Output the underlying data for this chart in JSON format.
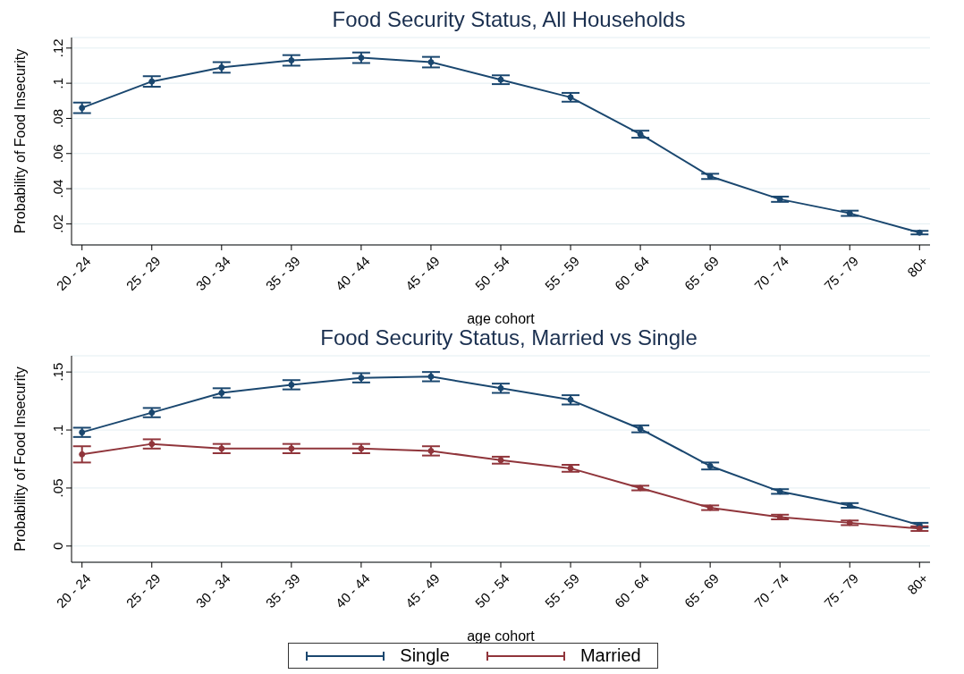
{
  "chart_data": [
    {
      "type": "line",
      "title": "Food Security Status, All Households",
      "xlabel": "age cohort",
      "ylabel": "Probability of Food Insecurity",
      "categories": [
        "20 - 24",
        "25 - 29",
        "30 - 34",
        "35 - 39",
        "40 - 44",
        "45 - 49",
        "50 - 54",
        "55 - 59",
        "60 - 64",
        "65 - 69",
        "70 - 74",
        "75 - 79",
        "80+"
      ],
      "series": [
        {
          "color": "#1a476f",
          "values": [
            0.086,
            0.101,
            0.109,
            0.113,
            0.1145,
            0.112,
            0.102,
            0.092,
            0.071,
            0.047,
            0.034,
            0.026,
            0.015
          ],
          "errors": [
            0.003,
            0.003,
            0.003,
            0.003,
            0.003,
            0.003,
            0.0025,
            0.0025,
            0.002,
            0.0015,
            0.0015,
            0.0015,
            0.001
          ]
        }
      ],
      "ylim": [
        0.008,
        0.126
      ],
      "yticks": [
        {
          "value": 0.02,
          "label": ".02"
        },
        {
          "value": 0.04,
          "label": ".04"
        },
        {
          "value": 0.06,
          "label": ".06"
        },
        {
          "value": 0.08,
          "label": ".08"
        },
        {
          "value": 0.1,
          "label": ".1"
        },
        {
          "value": 0.12,
          "label": ".12"
        }
      ],
      "grid": "y",
      "marker": "circle",
      "line_style": "solid"
    },
    {
      "type": "line",
      "title": "Food Security Status, Married vs Single",
      "xlabel": "age cohort",
      "ylabel": "Probability of Food Insecurity",
      "categories": [
        "20 - 24",
        "25 - 29",
        "30 - 34",
        "35 - 39",
        "40 - 44",
        "45 - 49",
        "50 - 54",
        "55 - 59",
        "60 - 64",
        "65 - 69",
        "70 - 74",
        "75 - 79",
        "80+"
      ],
      "series": [
        {
          "name": "Single",
          "color": "#1a476f",
          "values": [
            0.098,
            0.115,
            0.132,
            0.139,
            0.145,
            0.146,
            0.136,
            0.126,
            0.101,
            0.069,
            0.047,
            0.035,
            0.018
          ],
          "errors": [
            0.004,
            0.004,
            0.004,
            0.004,
            0.004,
            0.004,
            0.004,
            0.004,
            0.003,
            0.003,
            0.002,
            0.002,
            0.002
          ]
        },
        {
          "name": "Married",
          "color": "#90353b",
          "values": [
            0.079,
            0.088,
            0.084,
            0.084,
            0.084,
            0.082,
            0.074,
            0.067,
            0.05,
            0.033,
            0.025,
            0.02,
            0.015
          ],
          "errors": [
            0.007,
            0.004,
            0.004,
            0.004,
            0.004,
            0.004,
            0.003,
            0.003,
            0.002,
            0.002,
            0.002,
            0.002,
            0.002
          ]
        }
      ],
      "ylim": [
        -0.014,
        0.164
      ],
      "yticks": [
        0,
        {
          "value": 0.05,
          "label": ".05"
        },
        {
          "value": 0.1,
          "label": ".1"
        },
        {
          "value": 0.15,
          "label": ".15"
        }
      ],
      "grid": "y",
      "marker": "circle",
      "line_style": "solid",
      "legend": "bottom"
    }
  ]
}
